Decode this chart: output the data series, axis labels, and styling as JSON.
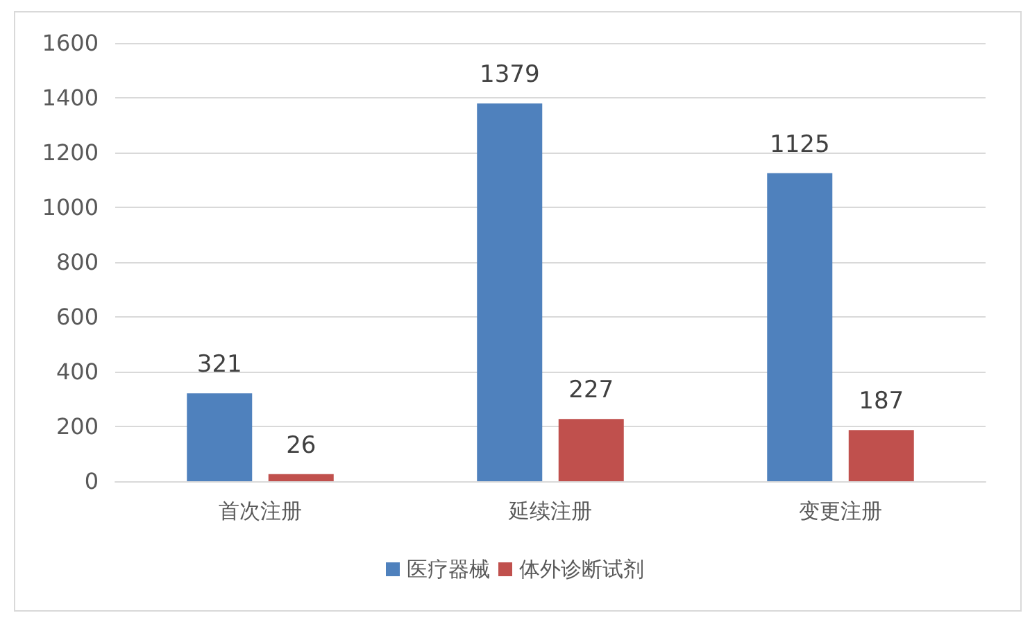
{
  "chart_data": {
    "type": "bar",
    "categories": [
      "首次注册",
      "延续注册",
      "变更注册"
    ],
    "series": [
      {
        "name": "医疗器械",
        "color": "#4f81bd",
        "values": [
          321,
          1379,
          1125
        ]
      },
      {
        "name": "体外诊断试剂",
        "color": "#c0504d",
        "values": [
          26,
          227,
          187
        ]
      }
    ],
    "ylim": [
      0,
      1600
    ],
    "yticks": [
      0,
      200,
      400,
      600,
      800,
      1000,
      1200,
      1400,
      1600
    ],
    "grid": "y",
    "legend": "bottom",
    "data_labels": true
  }
}
